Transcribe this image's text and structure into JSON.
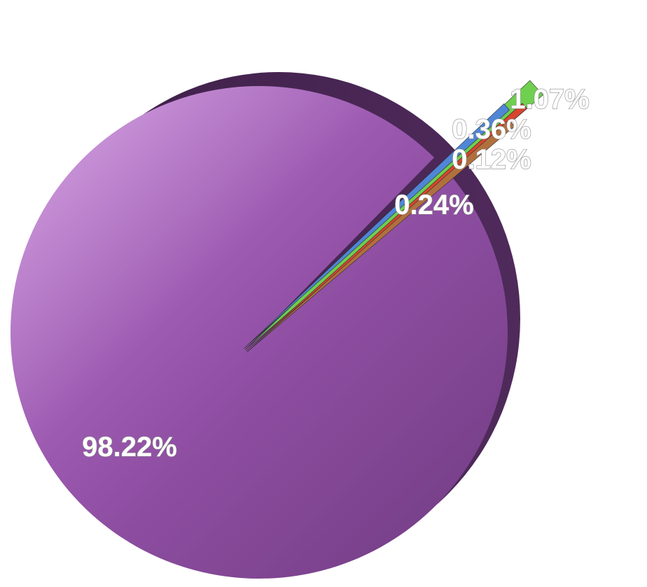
{
  "chart_data": {
    "type": "pie",
    "style": "3d-exploded",
    "slices": [
      {
        "value": 98.22,
        "label": "98.22%",
        "color": "#9a56ad"
      },
      {
        "value": 1.07,
        "label": "1.07%",
        "color": "#6fcf4f"
      },
      {
        "value": 0.36,
        "label": "0.36%",
        "color": "#4f86d6"
      },
      {
        "value": 0.12,
        "label": "0.12%",
        "color": "#d8452f"
      },
      {
        "value": 0.24,
        "label": "0.24%",
        "color": "#b0703e"
      }
    ],
    "legend": "none",
    "grid": false
  }
}
